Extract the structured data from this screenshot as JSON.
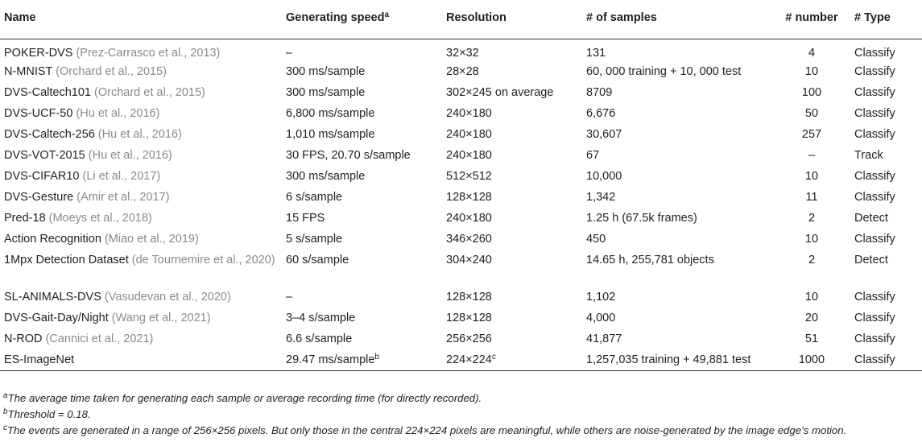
{
  "headers": {
    "name": "Name",
    "speed": "Generating speed",
    "speed_sup": "a",
    "resolution": "Resolution",
    "samples": "# of samples",
    "number": "# number",
    "type": "# Type"
  },
  "rows": [
    {
      "name": "POKER-DVS",
      "cite": "(Prez-Carrasco et al., 2013)",
      "speed": "–",
      "resolution": "32×32",
      "samples": "131",
      "number": "4",
      "type": "Classify"
    },
    {
      "name": "N-MNIST",
      "cite": "(Orchard et al., 2015)",
      "speed": "300 ms/sample",
      "resolution": "28×28",
      "samples": "60, 000 training + 10, 000 test",
      "number": "10",
      "type": "Classify"
    },
    {
      "name": "DVS-Caltech101",
      "cite": "(Orchard et al., 2015)",
      "speed": "300 ms/sample",
      "resolution": "302×245 on average",
      "samples": "8709",
      "number": "100",
      "type": "Classify"
    },
    {
      "name": "DVS-UCF-50",
      "cite": "(Hu et al., 2016)",
      "speed": "6,800 ms/sample",
      "resolution": "240×180",
      "samples": "6,676",
      "number": "50",
      "type": "Classify"
    },
    {
      "name": "DVS-Caltech-256",
      "cite": "(Hu et al., 2016)",
      "speed": "1,010 ms/sample",
      "resolution": "240×180",
      "samples": "30,607",
      "number": "257",
      "type": "Classify"
    },
    {
      "name": "DVS-VOT-2015",
      "cite": "(Hu et al., 2016)",
      "speed": "30 FPS, 20.70 s/sample",
      "resolution": "240×180",
      "samples": "67",
      "number": "–",
      "type": "Track"
    },
    {
      "name": "DVS-CIFAR10",
      "cite": "(Li et al., 2017)",
      "speed": "300 ms/sample",
      "resolution": "512×512",
      "samples": "10,000",
      "number": "10",
      "type": "Classify"
    },
    {
      "name": "DVS-Gesture",
      "cite": "(Amir et al., 2017)",
      "speed": "6 s/sample",
      "resolution": "128×128",
      "samples": "1,342",
      "number": "11",
      "type": "Classify"
    },
    {
      "name": "Pred-18",
      "cite": "(Moeys et al., 2018)",
      "speed": "15 FPS",
      "resolution": "240×180",
      "samples": "1.25 h (67.5k frames)",
      "number": "2",
      "type": "Detect"
    },
    {
      "name": "Action Recognition",
      "cite": "(Miao et al., 2019)",
      "speed": "5 s/sample",
      "resolution": "346×260",
      "samples": "450",
      "number": "10",
      "type": "Classify"
    },
    {
      "name": "1Mpx Detection Dataset",
      "cite": "(de Tournemire et al., 2020)",
      "speed": "60 s/sample",
      "resolution": "304×240",
      "samples": "14.65 h, 255,781 objects",
      "number": "2",
      "type": "Detect"
    },
    {
      "name": "SL-ANIMALS-DVS",
      "cite": "(Vasudevan et al., 2020)",
      "speed": "–",
      "resolution": "128×128",
      "samples": "1,102",
      "number": "10",
      "type": "Classify"
    },
    {
      "name": "DVS-Gait-Day/Night",
      "cite": "(Wang et al., 2021)",
      "speed": "3–4 s/sample",
      "resolution": "128×128",
      "samples": "4,000",
      "number": "20",
      "type": "Classify"
    },
    {
      "name": "N-ROD",
      "cite": "(Cannici et al., 2021)",
      "speed": "6.6 s/sample",
      "resolution": "256×256",
      "samples": "41,877",
      "number": "51",
      "type": "Classify"
    },
    {
      "name": "ES-ImageNet",
      "cite": "",
      "speed": "29.47 ms/sample",
      "speed_sup": "b",
      "resolution": "224×224",
      "resolution_sup": "c",
      "samples": "1,257,035 training + 49,881 test",
      "number": "1000",
      "type": "Classify"
    }
  ],
  "footnotes": [
    {
      "mark": "a",
      "text": "The average time taken for generating each sample or average recording time (for directly recorded)."
    },
    {
      "mark": "b",
      "text": "Threshold = 0.18."
    },
    {
      "mark": "c",
      "text": "The events are generated in a range of 256×256 pixels. But only those in the central 224×224 pixels are meaningful, while others are noise-generated by the image edge’s motion."
    }
  ]
}
